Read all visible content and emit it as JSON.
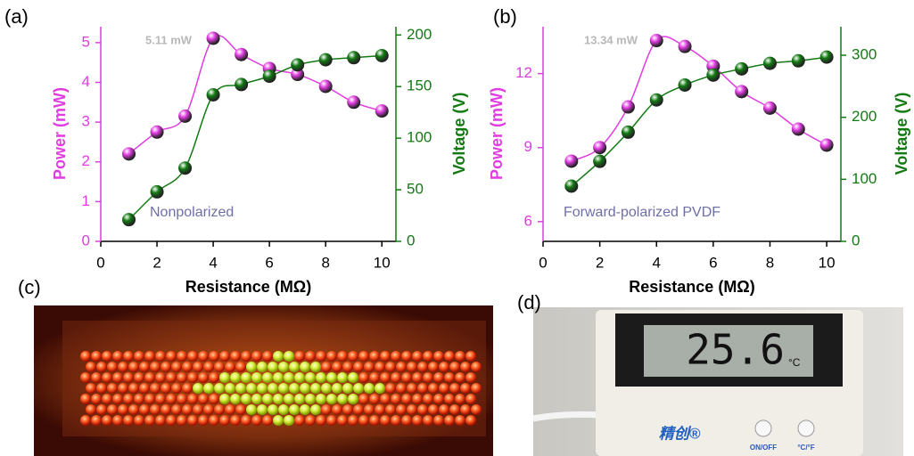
{
  "chart_data": [
    {
      "type": "line",
      "label": "(a)",
      "xlabel": "Resistance (MΩ)",
      "ylabel": "Power (mW)",
      "y2label": "Voltage (V)",
      "x": [
        1,
        2,
        3,
        4,
        5,
        6,
        7,
        8,
        9,
        10
      ],
      "xlim": [
        0,
        10.5
      ],
      "xticks": [
        0,
        2,
        4,
        6,
        8,
        10
      ],
      "ylim": [
        0,
        5.4
      ],
      "yticks": [
        0,
        1,
        2,
        3,
        4,
        5
      ],
      "y2lim": [
        0,
        208
      ],
      "y2ticks": [
        0,
        50,
        100,
        150,
        200
      ],
      "series": [
        {
          "color": "#e03ce0",
          "values": [
            2.2,
            2.75,
            3.15,
            5.11,
            4.7,
            4.35,
            4.2,
            3.9,
            3.5,
            3.28
          ]
        },
        {
          "color": "#137a13",
          "axis": "y2",
          "values": [
            21,
            48,
            71,
            142,
            152,
            160,
            171,
            176,
            178,
            180
          ]
        }
      ],
      "annotations": [
        {
          "text": "5.11 mW"
        },
        {
          "text": "Nonpolarized"
        }
      ]
    },
    {
      "type": "line",
      "label": "(b)",
      "xlabel": "Resistance (MΩ)",
      "ylabel": "Power (mW)",
      "y2label": "Voltage (V)",
      "x": [
        1,
        2,
        3,
        4,
        5,
        6,
        7,
        8,
        9,
        10
      ],
      "xlim": [
        0,
        10.5
      ],
      "xticks": [
        0,
        2,
        4,
        6,
        8,
        10
      ],
      "ylim": [
        5.2,
        13.9
      ],
      "yticks": [
        6,
        9,
        12
      ],
      "y2lim": [
        0,
        346
      ],
      "y2ticks": [
        0,
        100,
        200,
        300
      ],
      "series": [
        {
          "color": "#e03ce0",
          "values": [
            8.45,
            9.0,
            10.65,
            13.34,
            13.1,
            12.3,
            11.27,
            10.6,
            9.75,
            9.1
          ]
        },
        {
          "color": "#137a13",
          "axis": "y2",
          "values": [
            89,
            129,
            176,
            228,
            252,
            268,
            278,
            287,
            291,
            297
          ]
        }
      ],
      "annotations": [
        {
          "text": "13.34 mW"
        },
        {
          "text": "Forward-polarized PVDF"
        }
      ]
    }
  ],
  "photos": [
    {
      "label": "(c)"
    },
    {
      "label": "(d)",
      "display": "25.6",
      "unit": "°C",
      "brand": "精创®",
      "buttons": [
        "ON/OFF",
        "°C/°F"
      ]
    }
  ]
}
